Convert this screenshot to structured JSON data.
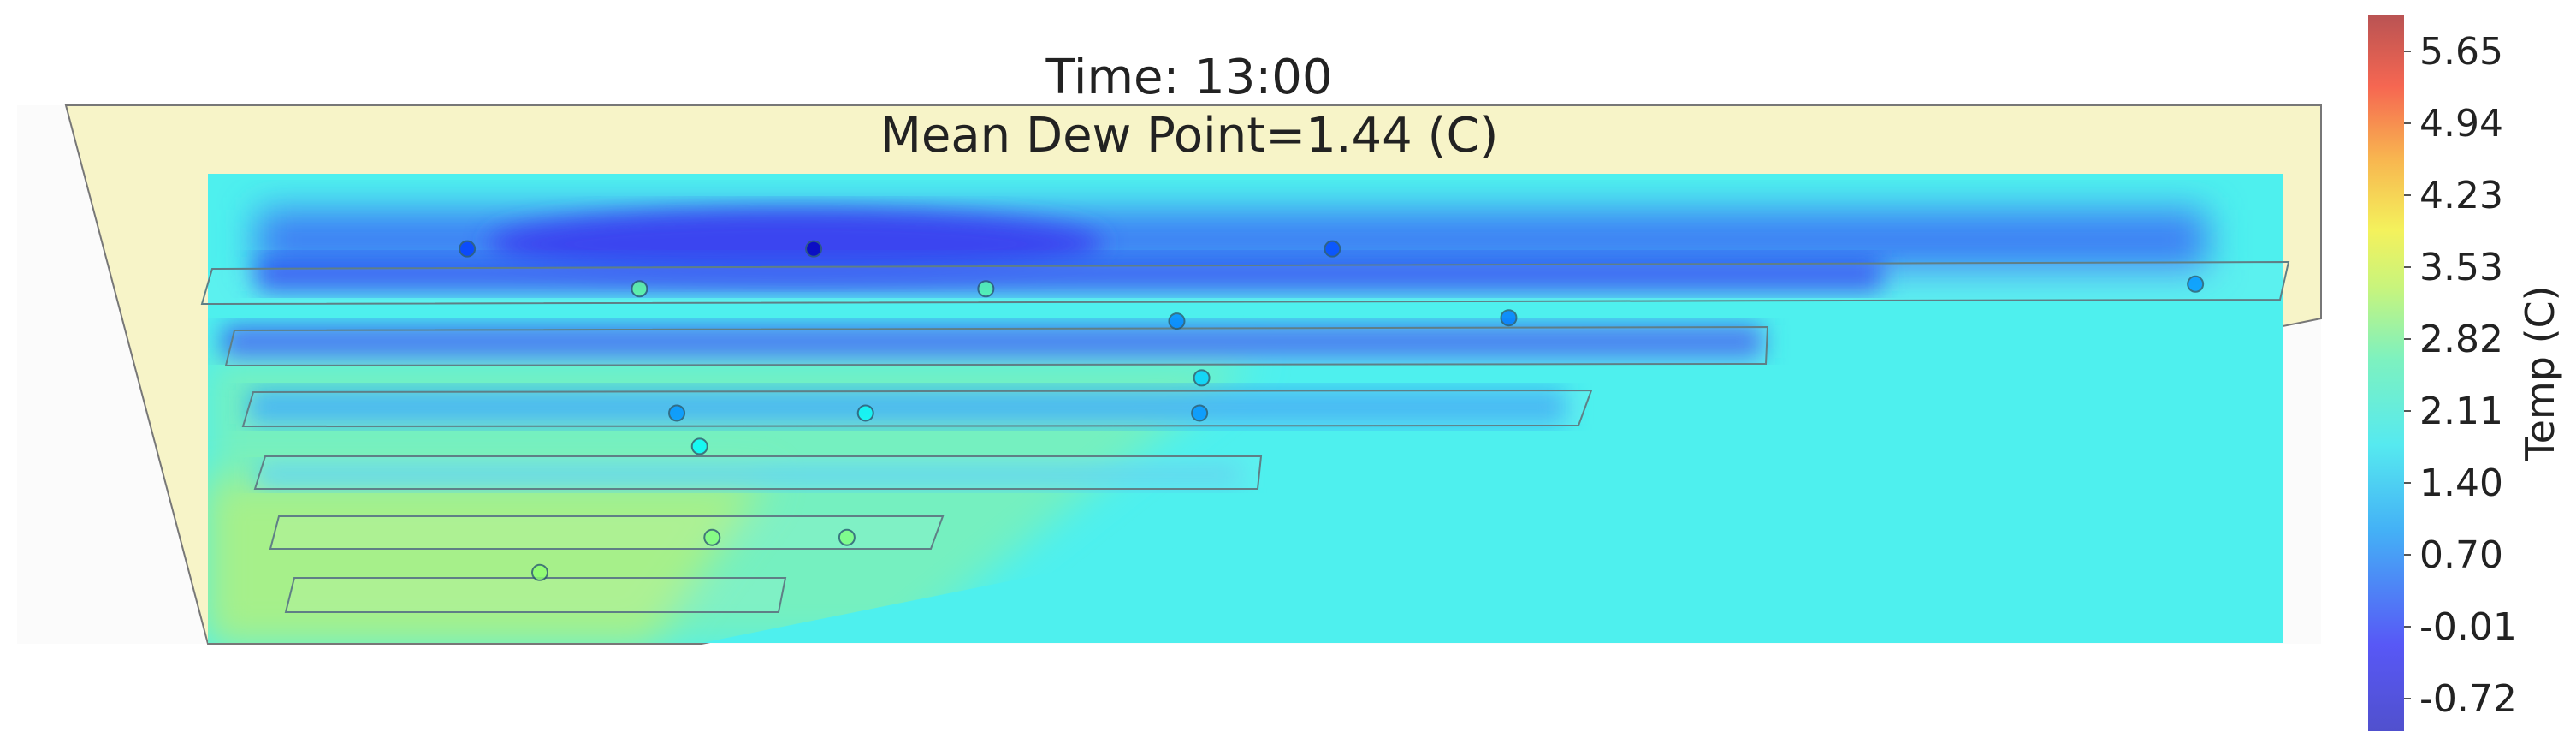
{
  "chart_data": {
    "type": "heatmap",
    "title": "Time: 13:00",
    "subtitle": "Mean Dew Point=1.44 (C)",
    "colorbar": {
      "label": "Temp (C)",
      "ticks": [
        "5.65",
        "4.94",
        "4.23",
        "3.53",
        "2.82",
        "2.11",
        "1.40",
        "0.70",
        "-0.01",
        "-0.72"
      ],
      "range": [
        -1.0,
        6.0
      ],
      "colormap": "jet",
      "alpha": 0.7
    },
    "background_color": "#f7f4c8",
    "sensors": [
      {
        "x": 0.125,
        "y": 0.84,
        "value": 0.3
      },
      {
        "x": 0.292,
        "y": 0.84,
        "value": -0.6
      },
      {
        "x": 0.542,
        "y": 0.84,
        "value": 0.4
      },
      {
        "x": 0.208,
        "y": 0.755,
        "value": 2.3
      },
      {
        "x": 0.375,
        "y": 0.755,
        "value": 2.2
      },
      {
        "x": 0.958,
        "y": 0.765,
        "value": 0.9
      },
      {
        "x": 0.467,
        "y": 0.686,
        "value": 0.8
      },
      {
        "x": 0.627,
        "y": 0.693,
        "value": 0.7
      },
      {
        "x": 0.479,
        "y": 0.565,
        "value": 1.3
      },
      {
        "x": 0.226,
        "y": 0.49,
        "value": 0.9
      },
      {
        "x": 0.317,
        "y": 0.49,
        "value": 1.7
      },
      {
        "x": 0.478,
        "y": 0.49,
        "value": 0.9
      },
      {
        "x": 0.237,
        "y": 0.419,
        "value": 1.6
      },
      {
        "x": 0.243,
        "y": 0.225,
        "value": 2.5
      },
      {
        "x": 0.308,
        "y": 0.225,
        "value": 2.5
      },
      {
        "x": 0.16,
        "y": 0.15,
        "value": 2.6
      }
    ]
  }
}
